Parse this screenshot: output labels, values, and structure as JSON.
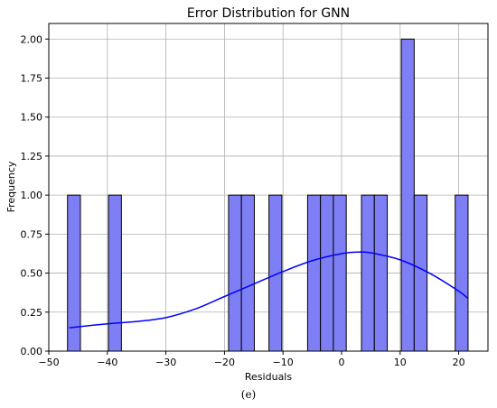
{
  "caption": "(e)",
  "chart_data": {
    "type": "bar",
    "title": "Error Distribution for GNN",
    "xlabel": "Residuals",
    "ylabel": "Frequency",
    "xlim": [
      -50,
      25
    ],
    "ylim": [
      0,
      2.1
    ],
    "grid": true,
    "xticks": [
      -50,
      -40,
      -30,
      -20,
      -10,
      0,
      10,
      20
    ],
    "xtick_labels": [
      "−50",
      "−40",
      "−30",
      "−20",
      "−10",
      "0",
      "10",
      "20"
    ],
    "yticks": [
      0,
      0.25,
      0.5,
      0.75,
      1.0,
      1.25,
      1.5,
      1.75,
      2.0
    ],
    "ytick_labels": [
      "0.00",
      "0.25",
      "0.50",
      "0.75",
      "1.00",
      "1.25",
      "1.50",
      "1.75",
      "2.00"
    ],
    "bar_color": "#7f7ff5",
    "bar_edge": "#000000",
    "line_color": "#0000ff",
    "bins": [
      {
        "x0": -46.8,
        "x1": -44.6,
        "count": 1
      },
      {
        "x0": -39.8,
        "x1": -37.6,
        "count": 1
      },
      {
        "x0": -19.3,
        "x1": -17.1,
        "count": 1
      },
      {
        "x0": -17.1,
        "x1": -14.9,
        "count": 1
      },
      {
        "x0": -12.4,
        "x1": -10.2,
        "count": 1
      },
      {
        "x0": -5.8,
        "x1": -3.6,
        "count": 1
      },
      {
        "x0": -3.6,
        "x1": -1.4,
        "count": 1
      },
      {
        "x0": -1.4,
        "x1": 0.8,
        "count": 1
      },
      {
        "x0": 3.4,
        "x1": 5.6,
        "count": 1
      },
      {
        "x0": 5.6,
        "x1": 7.8,
        "count": 1
      },
      {
        "x0": 10.2,
        "x1": 12.4,
        "count": 2
      },
      {
        "x0": 12.4,
        "x1": 14.6,
        "count": 1
      },
      {
        "x0": 19.4,
        "x1": 21.6,
        "count": 1
      }
    ],
    "kde": {
      "x": [
        -46.5,
        -40,
        -35,
        -30,
        -25,
        -20,
        -15,
        -10,
        -5,
        0,
        3,
        5,
        10,
        15,
        20,
        21.5
      ],
      "y": [
        0.15,
        0.175,
        0.19,
        0.215,
        0.27,
        0.35,
        0.43,
        0.51,
        0.58,
        0.625,
        0.635,
        0.63,
        0.585,
        0.5,
        0.385,
        0.34
      ]
    }
  }
}
